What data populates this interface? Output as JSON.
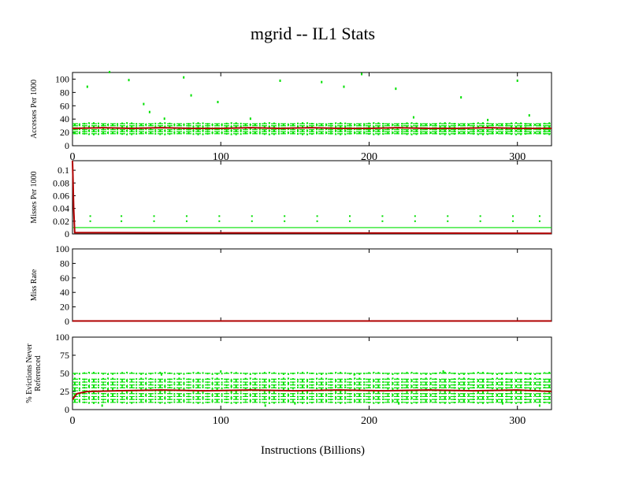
{
  "title": "mgrid -- IL1  Stats",
  "xlabel": "Instructions (Billions)",
  "colors": {
    "samples": "#00e000",
    "average": "#b00000",
    "axes": "#000000"
  },
  "chart_data": [
    {
      "type": "scatter",
      "ylabel": "Accesses Per 1000",
      "xlim": [
        0,
        323
      ],
      "ylim": [
        0,
        110
      ],
      "yticks": [
        0,
        20,
        40,
        60,
        80,
        100
      ],
      "ytick_labels": [
        "0",
        "20",
        "40",
        "60",
        "80",
        "100"
      ],
      "xticks": [
        0,
        100,
        200,
        300
      ],
      "xtick_labels": [
        "0",
        "100",
        "200",
        "300"
      ],
      "series": [
        {
          "values_x": [
            0,
            20,
            40,
            60,
            80,
            100,
            120,
            140,
            160,
            180,
            200,
            220,
            240,
            260,
            280,
            300,
            323
          ],
          "values_y": [
            26,
            27,
            26,
            27,
            26,
            26,
            27,
            26,
            27,
            26,
            26,
            27,
            26,
            26,
            27,
            26,
            26
          ],
          "kind": "average"
        },
        {
          "bands": [
            18,
            21,
            24,
            27,
            30,
            33
          ],
          "outliers": [
            [
              10,
              88
            ],
            [
              25,
              110
            ],
            [
              38,
              98
            ],
            [
              48,
              62
            ],
            [
              52,
              50
            ],
            [
              75,
              102
            ],
            [
              80,
              75
            ],
            [
              98,
              65
            ],
            [
              140,
              97
            ],
            [
              168,
              95
            ],
            [
              183,
              88
            ],
            [
              195,
              107
            ],
            [
              218,
              85
            ],
            [
              262,
              72
            ],
            [
              300,
              97
            ],
            [
              308,
              45
            ],
            [
              62,
              40
            ],
            [
              120,
              40
            ],
            [
              230,
              42
            ],
            [
              280,
              38
            ]
          ],
          "kind": "samples"
        }
      ]
    },
    {
      "type": "scatter",
      "ylabel": "Misses Per 1000",
      "xlim": [
        0,
        323
      ],
      "ylim": [
        0,
        0.115
      ],
      "yticks": [
        0,
        0.02,
        0.04,
        0.06,
        0.08,
        0.1
      ],
      "ytick_labels": [
        "0",
        "0.02",
        "0.04",
        "0.06",
        "0.08",
        "0.1"
      ],
      "xticks": [
        0,
        100,
        200,
        300
      ],
      "xtick_labels": [
        "",
        "",
        "",
        ""
      ],
      "series": [
        {
          "values_x": [
            0,
            0.3,
            0.8,
            1.5,
            323
          ],
          "values_y": [
            0.115,
            0.09,
            0.04,
            0.002,
            0.001
          ],
          "kind": "average"
        },
        {
          "line": 0.01,
          "points": [
            [
              12,
              0.028
            ],
            [
              12,
              0.02
            ],
            [
              33,
              0.028
            ],
            [
              33,
              0.02
            ],
            [
              55,
              0.028
            ],
            [
              55,
              0.02
            ],
            [
              77,
              0.028
            ],
            [
              77,
              0.02
            ],
            [
              99,
              0.028
            ],
            [
              99,
              0.02
            ],
            [
              121,
              0.028
            ],
            [
              121,
              0.02
            ],
            [
              143,
              0.028
            ],
            [
              143,
              0.02
            ],
            [
              165,
              0.028
            ],
            [
              165,
              0.02
            ],
            [
              187,
              0.028
            ],
            [
              187,
              0.02
            ],
            [
              209,
              0.028
            ],
            [
              209,
              0.02
            ],
            [
              231,
              0.028
            ],
            [
              231,
              0.02
            ],
            [
              253,
              0.028
            ],
            [
              253,
              0.02
            ],
            [
              275,
              0.028
            ],
            [
              275,
              0.02
            ],
            [
              297,
              0.028
            ],
            [
              297,
              0.02
            ],
            [
              315,
              0.028
            ],
            [
              315,
              0.02
            ]
          ],
          "kind": "samples"
        }
      ]
    },
    {
      "type": "line",
      "ylabel": "Miss Rate",
      "xlim": [
        0,
        323
      ],
      "ylim": [
        0,
        100
      ],
      "yticks": [
        0,
        20,
        40,
        60,
        80,
        100
      ],
      "ytick_labels": [
        "0",
        "20",
        "40",
        "60",
        "80",
        "100"
      ],
      "xticks": [
        0,
        100,
        200,
        300
      ],
      "xtick_labels": [
        "",
        "",
        "",
        ""
      ],
      "series": [
        {
          "values_x": [
            0,
            323
          ],
          "values_y": [
            0.5,
            0.5
          ],
          "kind": "average"
        }
      ]
    },
    {
      "type": "scatter",
      "ylabel": "% Evictions Never Referenced",
      "xlim": [
        0,
        323
      ],
      "ylim": [
        0,
        100
      ],
      "yticks": [
        0,
        25,
        50,
        75,
        100
      ],
      "ytick_labels": [
        "0",
        "25",
        "50",
        "75",
        "100"
      ],
      "xticks": [
        0,
        100,
        200,
        300
      ],
      "xtick_labels": [
        "0",
        "100",
        "200",
        "300"
      ],
      "series": [
        {
          "values_x": [
            0,
            3,
            10,
            30,
            60,
            90,
            120,
            150,
            180,
            210,
            240,
            270,
            300,
            323
          ],
          "values_y": [
            14,
            22,
            25,
            26,
            27,
            26,
            27,
            26,
            27,
            26,
            27,
            26,
            27,
            25
          ],
          "kind": "average"
        },
        {
          "bands": [
            10,
            14,
            18,
            22,
            26,
            30,
            34,
            38,
            42,
            50
          ],
          "outliers": [
            [
              20,
              5
            ],
            [
              60,
              48
            ],
            [
              100,
              52
            ],
            [
              130,
              5
            ],
            [
              150,
              8
            ],
            [
              190,
              48
            ],
            [
              220,
              8
            ],
            [
              250,
              52
            ],
            [
              290,
              8
            ],
            [
              315,
              5
            ]
          ],
          "kind": "samples"
        }
      ]
    }
  ]
}
